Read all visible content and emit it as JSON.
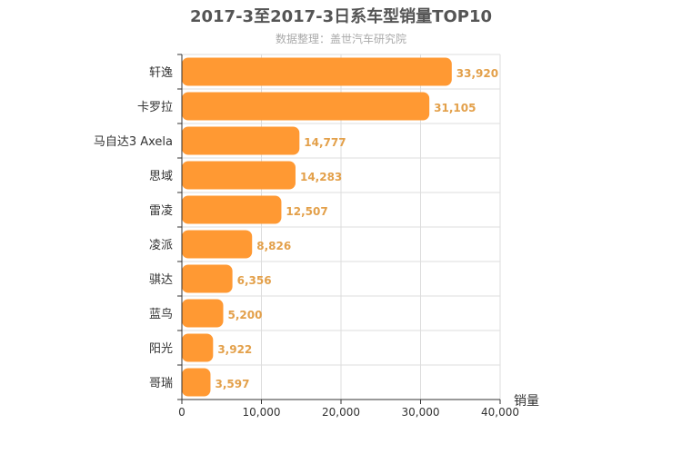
{
  "chart_data": {
    "type": "bar",
    "orientation": "horizontal",
    "title": "2017-3至2017-3日系车型销量TOP10",
    "subtitle": "数据整理：盖世汽车研究院",
    "categories": [
      "轩逸",
      "卡罗拉",
      "马自达3 Axela",
      "思域",
      "雷凌",
      "凌派",
      "骐达",
      "蓝鸟",
      "阳光",
      "哥瑞"
    ],
    "values": [
      33920,
      31105,
      14777,
      14283,
      12507,
      8826,
      6356,
      5200,
      3922,
      3597
    ],
    "value_labels": [
      "33,920",
      "31,105",
      "14,777",
      "14,283",
      "12,507",
      "8,826",
      "6,356",
      "5,200",
      "3,922",
      "3,597"
    ],
    "xlabel": "销量",
    "ylabel": "",
    "xlim": [
      0,
      40000
    ],
    "x_ticks": [
      0,
      10000,
      20000,
      30000,
      40000
    ],
    "x_tick_labels": [
      "0",
      "10,000",
      "20,000",
      "30,000",
      "40,000"
    ],
    "grid": true,
    "legend": "none",
    "bar_color": "#ff9933",
    "label_color": "#e3a04a"
  }
}
